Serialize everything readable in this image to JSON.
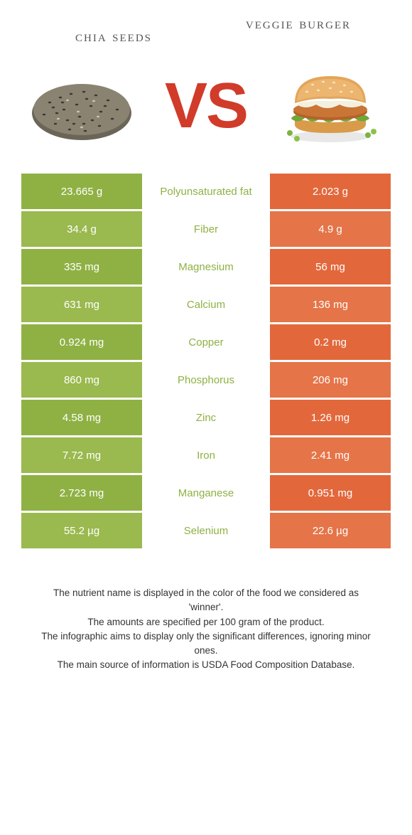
{
  "titles": {
    "left": "chia seeds",
    "right": "veggie burger"
  },
  "vs_text": "VS",
  "colors": {
    "left_bg": "#8fb144",
    "left_bg_alt": "#9ab94e",
    "right_bg": "#e2683c",
    "right_bg_alt": "#e57448",
    "winner_left_text": "#8fb144",
    "winner_right_text": "#e2683c",
    "vs_color": "#d13b2a"
  },
  "rows": [
    {
      "left": "23.665 g",
      "nutrient": "Polyunsaturated fat",
      "right": "2.023 g",
      "winner": "left"
    },
    {
      "left": "34.4 g",
      "nutrient": "Fiber",
      "right": "4.9 g",
      "winner": "left"
    },
    {
      "left": "335 mg",
      "nutrient": "Magnesium",
      "right": "56 mg",
      "winner": "left"
    },
    {
      "left": "631 mg",
      "nutrient": "Calcium",
      "right": "136 mg",
      "winner": "left"
    },
    {
      "left": "0.924 mg",
      "nutrient": "Copper",
      "right": "0.2 mg",
      "winner": "left"
    },
    {
      "left": "860 mg",
      "nutrient": "Phosphorus",
      "right": "206 mg",
      "winner": "left"
    },
    {
      "left": "4.58 mg",
      "nutrient": "Zinc",
      "right": "1.26 mg",
      "winner": "left"
    },
    {
      "left": "7.72 mg",
      "nutrient": "Iron",
      "right": "2.41 mg",
      "winner": "left"
    },
    {
      "left": "2.723 mg",
      "nutrient": "Manganese",
      "right": "0.951 mg",
      "winner": "left"
    },
    {
      "left": "55.2 µg",
      "nutrient": "Selenium",
      "right": "22.6 µg",
      "winner": "left"
    }
  ],
  "footer": [
    "The nutrient name is displayed in the color of the food we considered as 'winner'.",
    "The amounts are specified per 100 gram of the product.",
    "The infographic aims to display only the significant differences, ignoring minor ones.",
    "The main source of information is USDA Food Composition Database."
  ]
}
